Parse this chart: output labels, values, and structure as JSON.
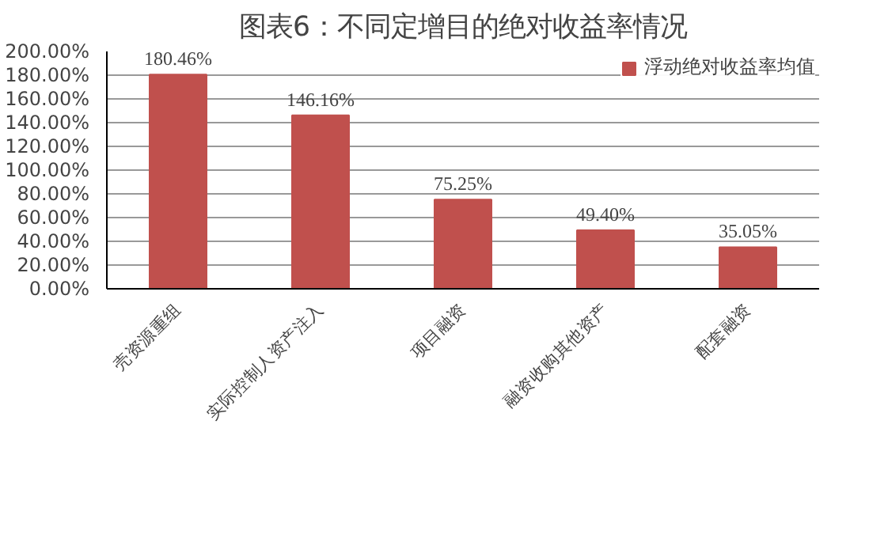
{
  "chart_data": {
    "type": "bar",
    "title": "图表6：不同定增目的绝对收益率情况",
    "categories": [
      "壳资源重组",
      "实际控制人资产注入",
      "项目融资",
      "融资收购其他资产",
      "配套融资"
    ],
    "series": [
      {
        "name": "浮动绝对收益率均值",
        "color": "#c0504d",
        "values": [
          180.46,
          146.16,
          75.25,
          49.4,
          35.05
        ],
        "value_labels": [
          "180.46%",
          "146.16%",
          "75.25%",
          "49.40%",
          "35.05%"
        ]
      }
    ],
    "ylim": [
      0,
      200
    ],
    "yticks": [
      {
        "value": 0,
        "label": "0.00%"
      },
      {
        "value": 20,
        "label": "20.00%"
      },
      {
        "value": 40,
        "label": "40.00%"
      },
      {
        "value": 60,
        "label": "60.00%"
      },
      {
        "value": 80,
        "label": "80.00%"
      },
      {
        "value": 100,
        "label": "100.00%"
      },
      {
        "value": 120,
        "label": "120.00%"
      },
      {
        "value": 140,
        "label": "140.00%"
      },
      {
        "value": 160,
        "label": "160.00%"
      },
      {
        "value": 180,
        "label": "180.00%"
      },
      {
        "value": 200,
        "label": "200.00%"
      }
    ],
    "grid": "y",
    "legend": "top right"
  }
}
